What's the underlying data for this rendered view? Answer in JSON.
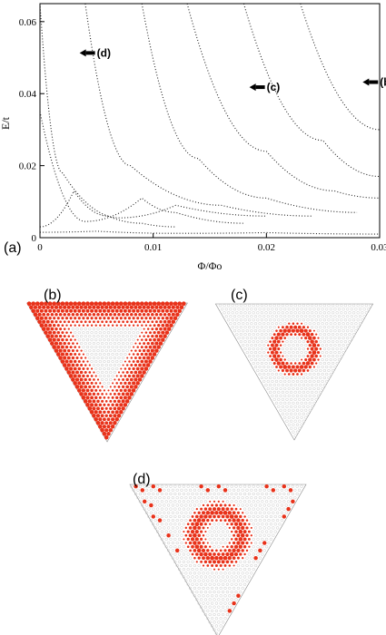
{
  "chart_data": {
    "type": "line",
    "xlabel": "Φ/Φo",
    "ylabel": "E/t",
    "xlim": [
      0,
      0.03
    ],
    "ylim": [
      0,
      0.065
    ],
    "x_ticks": [
      "0",
      "0.01",
      "0.02",
      "0.03"
    ],
    "y_ticks": [
      "0",
      "0.02",
      "0.04",
      "0.06"
    ],
    "marker_style": "dotted",
    "series": [
      {
        "values": [
          [
            0.0,
            0.003
          ],
          [
            0.003,
            0.013
          ],
          [
            0.006,
            0.006
          ],
          [
            0.009,
            0.004
          ],
          [
            0.012,
            0.003
          ]
        ]
      },
      {
        "values": [
          [
            0.0,
            0.035
          ],
          [
            0.004,
            0.0045
          ],
          [
            0.009,
            0.011
          ],
          [
            0.012,
            0.007
          ],
          [
            0.018,
            0.004
          ]
        ]
      },
      {
        "values": [
          [
            0.0,
            0.065
          ],
          [
            0.002,
            0.018
          ],
          [
            0.007,
            0.0055
          ],
          [
            0.012,
            0.009
          ],
          [
            0.02,
            0.006
          ]
        ]
      },
      {
        "values": [
          [
            0.004,
            0.065
          ],
          [
            0.008,
            0.02
          ],
          [
            0.016,
            0.009
          ],
          [
            0.024,
            0.006
          ]
        ]
      },
      {
        "values": [
          [
            0.009,
            0.065
          ],
          [
            0.014,
            0.022
          ],
          [
            0.02,
            0.011
          ],
          [
            0.028,
            0.007
          ]
        ]
      },
      {
        "values": [
          [
            0.013,
            0.065
          ],
          [
            0.02,
            0.024
          ],
          [
            0.026,
            0.013
          ],
          [
            0.03,
            0.011
          ]
        ]
      },
      {
        "values": [
          [
            0.018,
            0.065
          ],
          [
            0.025,
            0.027
          ],
          [
            0.03,
            0.017
          ]
        ]
      },
      {
        "values": [
          [
            0.023,
            0.065
          ],
          [
            0.03,
            0.03
          ]
        ]
      },
      {
        "values": [
          [
            0.0,
            0.0015
          ],
          [
            0.005,
            0.0018
          ],
          [
            0.012,
            0.0012
          ],
          [
            0.02,
            0.0014
          ],
          [
            0.03,
            0.001
          ]
        ]
      }
    ],
    "annotations": [
      {
        "label": "(d)",
        "x": 0.0035,
        "y": 0.0513
      },
      {
        "label": "(c)",
        "x": 0.0185,
        "y": 0.0418
      },
      {
        "label": "(b)",
        "x": 0.0285,
        "y": 0.0432
      }
    ]
  },
  "panel_labels": {
    "a": "(a)",
    "b": "(b)",
    "c": "(c)",
    "d": "(d)"
  },
  "colors": {
    "density": "#e8321a",
    "lattice": "#8a8a8a",
    "axes": "#000000"
  }
}
